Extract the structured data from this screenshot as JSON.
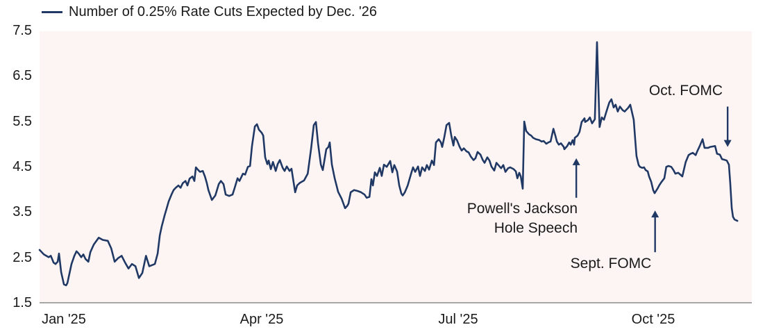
{
  "legend": {
    "series_label": "Number of 0.25% Rate Cuts Expected by Dec. '26"
  },
  "chart_data": {
    "type": "line",
    "title": "",
    "legend_label": "Number of 0.25% Rate Cuts Expected by Dec. '26",
    "ylabel": "",
    "xlabel": "",
    "ylim": [
      1.5,
      7.5
    ],
    "y_tick_labels": [
      "7.5",
      "6.5",
      "5.5",
      "4.5",
      "3.5",
      "2.5",
      "1.5"
    ],
    "x_tick_labels": [
      "Jan '25",
      "Apr '25",
      "Jul '25",
      "Oct '25"
    ],
    "x_tick_days": [
      0,
      90,
      181,
      273
    ],
    "x_unit": "days since Jan 1, 2025",
    "grid": false,
    "legend_position": "top-left",
    "line_color": "#203864",
    "plot_bg": "#fdf4f4",
    "axis_color": "#a6a6a6",
    "points": [
      [
        -11.3,
        2.68
      ],
      [
        -9.3,
        2.58
      ],
      [
        -7.1,
        2.52
      ],
      [
        -6.1,
        2.55
      ],
      [
        -4.8,
        2.4
      ],
      [
        -3.9,
        2.37
      ],
      [
        -2.9,
        2.42
      ],
      [
        -2.3,
        2.6
      ],
      [
        -1.3,
        2.19
      ],
      [
        0,
        1.92
      ],
      [
        1,
        1.9
      ],
      [
        1.6,
        1.95
      ],
      [
        2.6,
        2.17
      ],
      [
        3.5,
        2.37
      ],
      [
        4.8,
        2.55
      ],
      [
        5.8,
        2.65
      ],
      [
        6.8,
        2.6
      ],
      [
        8,
        2.52
      ],
      [
        9,
        2.58
      ],
      [
        10,
        2.48
      ],
      [
        11.3,
        2.42
      ],
      [
        12.2,
        2.63
      ],
      [
        13.8,
        2.8
      ],
      [
        16.1,
        2.95
      ],
      [
        18,
        2.9
      ],
      [
        20.3,
        2.88
      ],
      [
        21.9,
        2.71
      ],
      [
        23.5,
        2.42
      ],
      [
        25.1,
        2.5
      ],
      [
        26.7,
        2.55
      ],
      [
        28.3,
        2.4
      ],
      [
        29.9,
        2.27
      ],
      [
        31.5,
        2.37
      ],
      [
        33.1,
        2.32
      ],
      [
        34.7,
        2.06
      ],
      [
        36.3,
        2.17
      ],
      [
        38,
        2.55
      ],
      [
        39.5,
        2.32
      ],
      [
        42.1,
        2.37
      ],
      [
        43.4,
        2.6
      ],
      [
        44.4,
        3.0
      ],
      [
        45.3,
        3.2
      ],
      [
        46.6,
        3.44
      ],
      [
        47.6,
        3.6
      ],
      [
        48.5,
        3.75
      ],
      [
        49.8,
        3.9
      ],
      [
        50.8,
        4.0
      ],
      [
        51.8,
        4.05
      ],
      [
        53,
        4.1
      ],
      [
        54,
        4.05
      ],
      [
        55,
        4.15
      ],
      [
        56.3,
        4.2
      ],
      [
        57.2,
        4.1
      ],
      [
        58.2,
        4.25
      ],
      [
        59.5,
        4.3
      ],
      [
        60.4,
        4.2
      ],
      [
        61.1,
        4.5
      ],
      [
        62,
        4.45
      ],
      [
        63,
        4.4
      ],
      [
        64.3,
        4.42
      ],
      [
        65.3,
        4.3
      ],
      [
        66.2,
        4.15
      ],
      [
        66.9,
        4.0
      ],
      [
        68.5,
        3.78
      ],
      [
        70.1,
        3.88
      ],
      [
        71.7,
        4.13
      ],
      [
        72.7,
        4.2
      ],
      [
        73.9,
        4.13
      ],
      [
        74.9,
        3.9
      ],
      [
        76.5,
        3.87
      ],
      [
        78.1,
        3.9
      ],
      [
        79.1,
        4.05
      ],
      [
        80.4,
        4.26
      ],
      [
        81.3,
        4.2
      ],
      [
        82.9,
        4.36
      ],
      [
        83.9,
        4.34
      ],
      [
        85.2,
        4.51
      ],
      [
        86.2,
        4.53
      ],
      [
        87.1,
        4.97
      ],
      [
        88.4,
        5.4
      ],
      [
        89.4,
        5.45
      ],
      [
        90.3,
        5.33
      ],
      [
        91.6,
        5.26
      ],
      [
        92.3,
        5.2
      ],
      [
        93.2,
        4.72
      ],
      [
        94.2,
        4.57
      ],
      [
        94.8,
        4.65
      ],
      [
        95.8,
        4.46
      ],
      [
        96.8,
        4.62
      ],
      [
        98.1,
        4.42
      ],
      [
        99,
        4.57
      ],
      [
        100,
        4.66
      ],
      [
        101.3,
        4.49
      ],
      [
        102.2,
        4.42
      ],
      [
        103.2,
        4.52
      ],
      [
        104.5,
        4.42
      ],
      [
        105.4,
        4.47
      ],
      [
        107.1,
        3.95
      ],
      [
        108,
        4.1
      ],
      [
        109.3,
        4.16
      ],
      [
        111.2,
        4.21
      ],
      [
        112.9,
        4.36
      ],
      [
        114.5,
        4.92
      ],
      [
        115.7,
        5.43
      ],
      [
        116.7,
        5.5
      ],
      [
        117.7,
        5.02
      ],
      [
        119,
        4.56
      ],
      [
        119.9,
        4.44
      ],
      [
        121.5,
        4.9
      ],
      [
        122.5,
        4.95
      ],
      [
        123.1,
        5.05
      ],
      [
        124.1,
        4.56
      ],
      [
        125.4,
        4.26
      ],
      [
        127,
        3.96
      ],
      [
        128.6,
        3.81
      ],
      [
        130.2,
        3.6
      ],
      [
        131.2,
        3.65
      ],
      [
        131.8,
        3.7
      ],
      [
        132.8,
        3.95
      ],
      [
        134.4,
        4.0
      ],
      [
        136,
        3.98
      ],
      [
        137.6,
        3.95
      ],
      [
        139.2,
        3.9
      ],
      [
        140.2,
        3.83
      ],
      [
        141.5,
        3.85
      ],
      [
        142.4,
        4.24
      ],
      [
        143.1,
        4.1
      ],
      [
        144,
        4.39
      ],
      [
        145,
        4.31
      ],
      [
        146.3,
        4.49
      ],
      [
        147.2,
        4.31
      ],
      [
        148.2,
        4.56
      ],
      [
        149.5,
        4.51
      ],
      [
        151.1,
        4.64
      ],
      [
        152.1,
        4.39
      ],
      [
        153,
        4.55
      ],
      [
        154.3,
        4.41
      ],
      [
        155.3,
        4.1
      ],
      [
        156.3,
        3.92
      ],
      [
        156.9,
        3.88
      ],
      [
        157.9,
        3.95
      ],
      [
        159.2,
        4.1
      ],
      [
        160.8,
        4.36
      ],
      [
        161.7,
        4.5
      ],
      [
        162.7,
        4.4
      ],
      [
        164,
        4.52
      ],
      [
        164.9,
        4.31
      ],
      [
        165.9,
        4.5
      ],
      [
        167.2,
        4.42
      ],
      [
        168.1,
        4.55
      ],
      [
        169.1,
        4.45
      ],
      [
        170.4,
        4.65
      ],
      [
        171.4,
        4.55
      ],
      [
        172.3,
        5.05
      ],
      [
        173.6,
        5.12
      ],
      [
        174.6,
        5.05
      ],
      [
        175.2,
        4.95
      ],
      [
        176.2,
        5.17
      ],
      [
        177.2,
        5.43
      ],
      [
        178.4,
        5.48
      ],
      [
        179.4,
        5.2
      ],
      [
        180.4,
        4.98
      ],
      [
        181,
        5.17
      ],
      [
        182,
        5.1
      ],
      [
        183.3,
        4.95
      ],
      [
        184.2,
        4.87
      ],
      [
        185.2,
        4.92
      ],
      [
        186.5,
        4.85
      ],
      [
        187.4,
        4.83
      ],
      [
        188.4,
        4.74
      ],
      [
        189.7,
        4.66
      ],
      [
        190.6,
        4.7
      ],
      [
        191.6,
        4.84
      ],
      [
        192.9,
        4.78
      ],
      [
        193.9,
        4.67
      ],
      [
        194.8,
        4.6
      ],
      [
        196.1,
        4.72
      ],
      [
        197.1,
        4.65
      ],
      [
        198,
        4.52
      ],
      [
        199.3,
        4.43
      ],
      [
        200.3,
        4.6
      ],
      [
        201.2,
        4.55
      ],
      [
        202.5,
        4.48
      ],
      [
        203.5,
        4.55
      ],
      [
        204.5,
        4.4
      ],
      [
        205.7,
        4.48
      ],
      [
        206.7,
        4.5
      ],
      [
        208.3,
        4.46
      ],
      [
        209.3,
        4.41
      ],
      [
        210,
        4.26
      ],
      [
        210.9,
        4.38
      ],
      [
        211.6,
        4.3
      ],
      [
        212.5,
        4.03
      ],
      [
        213.2,
        5.51
      ],
      [
        214.1,
        5.3
      ],
      [
        215.4,
        5.23
      ],
      [
        216.4,
        5.2
      ],
      [
        217.3,
        5.15
      ],
      [
        218.6,
        5.12
      ],
      [
        220.2,
        5.1
      ],
      [
        221.2,
        5.07
      ],
      [
        222.2,
        5.08
      ],
      [
        223.4,
        5.02
      ],
      [
        224.4,
        5.05
      ],
      [
        225.4,
        5.07
      ],
      [
        226.7,
        5.35
      ],
      [
        227.6,
        5.2
      ],
      [
        228.3,
        5.07
      ],
      [
        229.2,
        5.0
      ],
      [
        230.2,
        5.03
      ],
      [
        231.5,
        4.95
      ],
      [
        231.8,
        4.9
      ],
      [
        233.1,
        4.97
      ],
      [
        234,
        5.05
      ],
      [
        234.7,
        5.0
      ],
      [
        235.6,
        5.1
      ],
      [
        236.3,
        5.0
      ],
      [
        236.6,
        5.15
      ],
      [
        237.9,
        5.2
      ],
      [
        238.8,
        5.28
      ],
      [
        239.8,
        5.5
      ],
      [
        241.1,
        5.58
      ],
      [
        241.4,
        5.5
      ],
      [
        242.7,
        5.54
      ],
      [
        243.6,
        5.6
      ],
      [
        244.6,
        5.47
      ],
      [
        245.9,
        5.56
      ],
      [
        246.9,
        7.26
      ],
      [
        247.5,
        6.3
      ],
      [
        248.1,
        5.39
      ],
      [
        249.1,
        5.6
      ],
      [
        250.1,
        5.55
      ],
      [
        251.4,
        5.75
      ],
      [
        252.6,
        5.93
      ],
      [
        253.6,
        6.0
      ],
      [
        254.6,
        5.82
      ],
      [
        255.5,
        5.88
      ],
      [
        256.5,
        5.73
      ],
      [
        257.5,
        5.84
      ],
      [
        258.8,
        5.76
      ],
      [
        259.7,
        5.73
      ],
      [
        261.3,
        5.81
      ],
      [
        262.3,
        5.88
      ],
      [
        263.9,
        5.55
      ],
      [
        264.6,
        5.1
      ],
      [
        265.2,
        4.75
      ],
      [
        266.2,
        4.55
      ],
      [
        266.8,
        4.51
      ],
      [
        267.8,
        4.49
      ],
      [
        268.7,
        4.5
      ],
      [
        269.4,
        4.44
      ],
      [
        270.4,
        4.41
      ],
      [
        271,
        4.3
      ],
      [
        272,
        4.18
      ],
      [
        272.9,
        4.0
      ],
      [
        273.6,
        3.93
      ],
      [
        274.9,
        4.03
      ],
      [
        275.8,
        4.11
      ],
      [
        276.8,
        4.18
      ],
      [
        278.1,
        4.26
      ],
      [
        279,
        4.51
      ],
      [
        280,
        4.53
      ],
      [
        281.3,
        4.51
      ],
      [
        282.3,
        4.44
      ],
      [
        283.2,
        4.36
      ],
      [
        284.5,
        4.38
      ],
      [
        285.5,
        4.34
      ],
      [
        286.4,
        4.3
      ],
      [
        288,
        4.62
      ],
      [
        289.3,
        4.77
      ],
      [
        290.3,
        4.8
      ],
      [
        291.3,
        4.82
      ],
      [
        292.6,
        4.77
      ],
      [
        293.5,
        4.87
      ],
      [
        294.5,
        4.97
      ],
      [
        295.8,
        5.12
      ],
      [
        296.7,
        4.93
      ],
      [
        298.4,
        4.93
      ],
      [
        299.3,
        4.95
      ],
      [
        300.6,
        4.96
      ],
      [
        301.6,
        4.97
      ],
      [
        302.5,
        4.8
      ],
      [
        303.8,
        4.78
      ],
      [
        304.8,
        4.68
      ],
      [
        305.7,
        4.67
      ],
      [
        307,
        4.65
      ],
      [
        308,
        4.56
      ],
      [
        308.6,
        4.16
      ],
      [
        309.3,
        3.6
      ],
      [
        309.9,
        3.41
      ],
      [
        310.6,
        3.35
      ],
      [
        311.9,
        3.32
      ]
    ],
    "annotations": [
      {
        "label": "Powell's Jackson Hole Speech",
        "lines": [
          "Powell's Jackson",
          "Hole Speech"
        ],
        "day": 237.3,
        "v_tail": 3.83,
        "v_tip": 4.7,
        "dir": "up"
      },
      {
        "label": "Sept. FOMC",
        "lines": [
          "Sept. FOMC"
        ],
        "day": 273.8,
        "v_tail": 2.63,
        "v_tip": 3.55,
        "dir": "up"
      },
      {
        "label": "Oct. FOMC",
        "lines": [
          "Oct. FOMC"
        ],
        "day": 307.4,
        "v_tail": 5.84,
        "v_tip": 4.95,
        "dir": "down"
      }
    ]
  }
}
